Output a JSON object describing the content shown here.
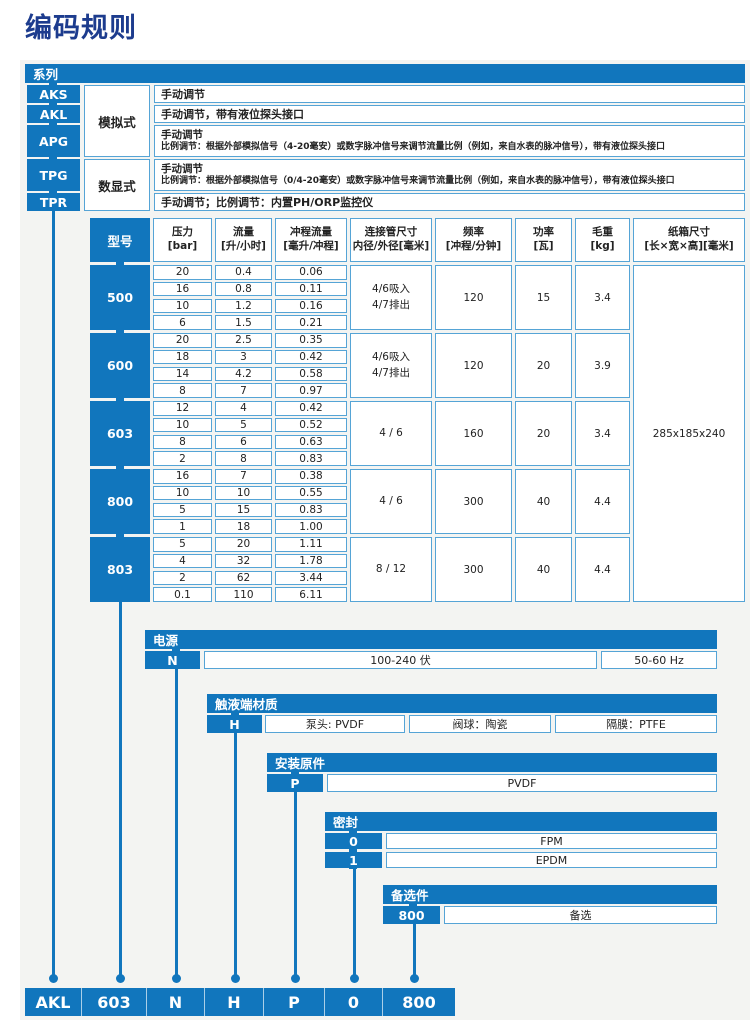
{
  "title": "编码规则",
  "colors": {
    "blue": "#1176BD",
    "cell_border": "#55A4D6",
    "title_text": "#1D3C8E"
  },
  "series": {
    "header": "系列",
    "type_labels": {
      "analog": "模拟式",
      "digital": "数显式"
    },
    "items": [
      {
        "code": "AKS",
        "lines": [
          "手动调节"
        ]
      },
      {
        "code": "AKL",
        "lines": [
          "手动调节，带有液位探头接口"
        ]
      },
      {
        "code": "APG",
        "lines": [
          "手动调节",
          "比例调节：根据外部模拟信号（4-20毫安）或数字脉冲信号来调节流量比例（例如，来自水表的脉冲信号），带有液位探头接口"
        ]
      },
      {
        "code": "TPG",
        "lines": [
          "手动调节",
          "比例调节：根据外部模拟信号（0/4-20毫安）或数字脉冲信号来调节流量比例（例如，来自水表的脉冲信号），带有液位探头接口"
        ]
      },
      {
        "code": "TPR",
        "lines": [
          "手动调节；比例调节：内置PH/ORP监控仪"
        ]
      }
    ]
  },
  "spec_table": {
    "headers": [
      {
        "l1": "型号",
        "l2": ""
      },
      {
        "l1": "压力",
        "l2": "[bar]"
      },
      {
        "l1": "流量",
        "l2": "[升/小时]"
      },
      {
        "l1": "冲程流量",
        "l2": "[毫升/冲程]"
      },
      {
        "l1": "连接管尺寸",
        "l2": "内径/外径[毫米]"
      },
      {
        "l1": "频率",
        "l2": "[冲程/分钟]"
      },
      {
        "l1": "功率",
        "l2": "[瓦]"
      },
      {
        "l1": "毛重",
        "l2": "[kg]"
      },
      {
        "l1": "纸箱尺寸",
        "l2": "[长×宽×高][毫米]"
      }
    ],
    "sections": [
      {
        "model": "500",
        "rows": [
          [
            "20",
            "0.4",
            "0.06"
          ],
          [
            "16",
            "0.8",
            "0.11"
          ],
          [
            "10",
            "1.2",
            "0.16"
          ],
          [
            "6",
            "1.5",
            "0.21"
          ]
        ],
        "pipe": [
          "4/6吸入",
          "4/7排出"
        ],
        "freq": "120",
        "power": "15",
        "weight": "3.4"
      },
      {
        "model": "600",
        "rows": [
          [
            "20",
            "2.5",
            "0.35"
          ],
          [
            "18",
            "3",
            "0.42"
          ],
          [
            "14",
            "4.2",
            "0.58"
          ],
          [
            "8",
            "7",
            "0.97"
          ]
        ],
        "pipe": [
          "4/6吸入",
          "4/7排出"
        ],
        "freq": "120",
        "power": "20",
        "weight": "3.9"
      },
      {
        "model": "603",
        "rows": [
          [
            "12",
            "4",
            "0.42"
          ],
          [
            "10",
            "5",
            "0.52"
          ],
          [
            "8",
            "6",
            "0.63"
          ],
          [
            "2",
            "8",
            "0.83"
          ]
        ],
        "pipe": [
          "4 / 6"
        ],
        "freq": "160",
        "power": "20",
        "weight": "3.4"
      },
      {
        "model": "800",
        "rows": [
          [
            "16",
            "7",
            "0.38"
          ],
          [
            "10",
            "10",
            "0.55"
          ],
          [
            "5",
            "15",
            "0.83"
          ],
          [
            "1",
            "18",
            "1.00"
          ]
        ],
        "pipe": [
          "4 / 6"
        ],
        "freq": "300",
        "power": "40",
        "weight": "4.4"
      },
      {
        "model": "803",
        "rows": [
          [
            "5",
            "20",
            "1.11"
          ],
          [
            "4",
            "32",
            "1.78"
          ],
          [
            "2",
            "62",
            "3.44"
          ],
          [
            "0.1",
            "110",
            "6.11"
          ]
        ],
        "pipe": [
          "8 / 12"
        ],
        "freq": "300",
        "power": "40",
        "weight": "4.4"
      }
    ],
    "carton_size": "285x185x240"
  },
  "power": {
    "header": "电源",
    "code": "N",
    "voltage": "100-240 伏",
    "frequency": "50-60 Hz"
  },
  "wetted": {
    "header": "触液端材质",
    "code": "H",
    "cells": [
      "泵头: PVDF",
      "阀球：陶瓷",
      "隔膜：PTFE"
    ]
  },
  "install": {
    "header": "安装原件",
    "code": "P",
    "value": "PVDF"
  },
  "seal": {
    "header": "密封",
    "rows": [
      {
        "code": "0",
        "value": "FPM"
      },
      {
        "code": "1",
        "value": "EPDM"
      }
    ]
  },
  "options": {
    "header": "备选件",
    "code": "800",
    "value": "备选"
  },
  "code_bar": {
    "segments": [
      "AKL",
      "603",
      "N",
      "H",
      "P",
      "0",
      "800"
    ]
  }
}
